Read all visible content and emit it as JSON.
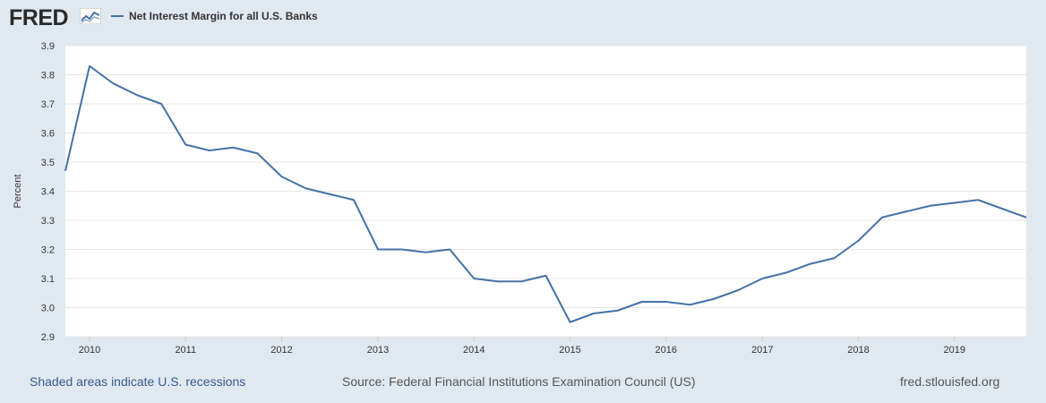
{
  "header": {
    "logo_text": "FRED",
    "series_title": "Net Interest Margin for all U.S. Banks"
  },
  "colors": {
    "line": "#4572a7",
    "plot_bg": "#ffffff",
    "page_bg": "#e1e9f0",
    "grid": "#e6e6e6"
  },
  "footer": {
    "recession_note": "Shaded areas indicate U.S. recessions",
    "source": "Source: Federal Financial Institutions Examination Council (US)",
    "site": "fred.stlouisfed.org"
  },
  "chart_data": {
    "type": "line",
    "title": "Net Interest Margin for all U.S. Banks",
    "ylabel": "Percent",
    "xlabel": "",
    "ylim": [
      2.9,
      3.9
    ],
    "xlim": [
      "2009-10-01",
      "2019-10-01"
    ],
    "y_ticks": [
      "2.9",
      "3.0",
      "3.1",
      "3.2",
      "3.3",
      "3.4",
      "3.5",
      "3.6",
      "3.7",
      "3.8",
      "3.9"
    ],
    "x_ticks": [
      "2010",
      "2011",
      "2012",
      "2013",
      "2014",
      "2015",
      "2016",
      "2017",
      "2018",
      "2019"
    ],
    "grid": true,
    "series": [
      {
        "name": "Net Interest Margin for all U.S. Banks",
        "x": [
          "2009-10-01",
          "2010-01-01",
          "2010-04-01",
          "2010-07-01",
          "2010-10-01",
          "2011-01-01",
          "2011-04-01",
          "2011-07-01",
          "2011-10-01",
          "2012-01-01",
          "2012-04-01",
          "2012-07-01",
          "2012-10-01",
          "2013-01-01",
          "2013-04-01",
          "2013-07-01",
          "2013-10-01",
          "2014-01-01",
          "2014-04-01",
          "2014-07-01",
          "2014-10-01",
          "2015-01-01",
          "2015-04-01",
          "2015-07-01",
          "2015-10-01",
          "2016-01-01",
          "2016-04-01",
          "2016-07-01",
          "2016-10-01",
          "2017-01-01",
          "2017-04-01",
          "2017-07-01",
          "2017-10-01",
          "2018-01-01",
          "2018-04-01",
          "2018-07-01",
          "2018-10-01",
          "2019-01-01",
          "2019-04-01",
          "2019-07-01",
          "2019-10-01"
        ],
        "values": [
          3.47,
          3.83,
          3.77,
          3.73,
          3.7,
          3.56,
          3.54,
          3.55,
          3.53,
          3.45,
          3.41,
          3.39,
          3.37,
          3.2,
          3.2,
          3.19,
          3.2,
          3.1,
          3.09,
          3.09,
          3.11,
          2.95,
          2.98,
          2.99,
          3.02,
          3.02,
          3.01,
          3.03,
          3.06,
          3.1,
          3.12,
          3.15,
          3.17,
          3.23,
          3.31,
          3.33,
          3.35,
          3.36,
          3.37,
          3.34,
          3.31
        ]
      }
    ]
  }
}
